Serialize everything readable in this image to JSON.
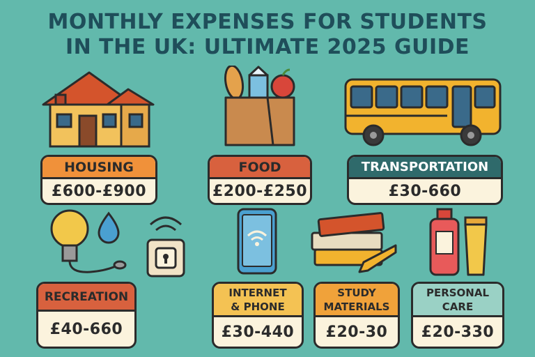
{
  "title_line1": "MONTHLY EXPENSES FOR STUDENTS",
  "title_line2": "IN THE UK: ULTIMATE 2025 GUIDE",
  "colors": {
    "background": "#62b9ac",
    "title": "#1f4e5a",
    "orange_header": "#f0913a",
    "red_header": "#d8613e",
    "teal_header": "#2f6a6b",
    "yellow_header": "#f4c253",
    "mint_header": "#9ad1c5",
    "card_body": "#fbf3dd"
  },
  "cards": [
    {
      "label": "HOUSING",
      "price": "£600-£900",
      "icon": "house-icon"
    },
    {
      "label": "FOOD",
      "price": "£200-£250",
      "icon": "grocery-bag-icon"
    },
    {
      "label": "TRANSPORTATION",
      "price": "£30-660",
      "icon": "bus-icon"
    },
    {
      "label": "RECREATION",
      "price": "£40-660",
      "icon": "lightbulb-water-icon"
    },
    {
      "label_line1": "INTERNET",
      "label_line2": "& PHONE",
      "price": "£30-440",
      "icon": "phone-icon"
    },
    {
      "label_line1": "STUDY",
      "label_line2": "MATERIALS",
      "price": "£20-30",
      "icon": "books-icon"
    },
    {
      "label_line1": "PERSONAL",
      "label_line2": "CARE",
      "price": "£20-330",
      "icon": "toiletries-icon"
    }
  ]
}
